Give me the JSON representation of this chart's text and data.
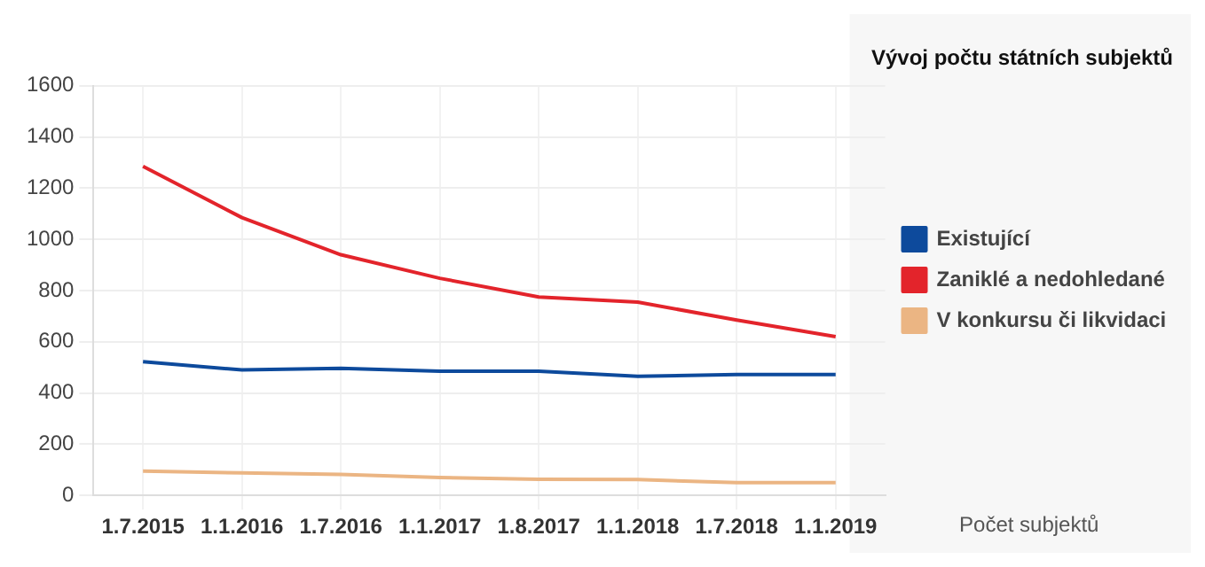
{
  "chart_data": {
    "type": "line",
    "title": "Vývoj počtu státních subjektů",
    "annotations": [
      "Počet subjektů"
    ],
    "categories": [
      "1.7.2015",
      "1.1.2016",
      "1.7.2016",
      "1.1.2017",
      "1.8.2017",
      "1.1.2018",
      "1.7.2018",
      "1.1.2019"
    ],
    "series": [
      {
        "name": "Existující",
        "color": "#0d4a9c",
        "values": [
          522,
          490,
          496,
          485,
          485,
          465,
          472,
          472
        ]
      },
      {
        "name": "Zaniklé a nedohledané",
        "color": "#e3242b",
        "values": [
          1285,
          1085,
          940,
          848,
          775,
          755,
          685,
          620
        ]
      },
      {
        "name": "V konkursu či likvidaci",
        "color": "#ebb583",
        "values": [
          95,
          88,
          82,
          70,
          63,
          62,
          50,
          50
        ]
      }
    ],
    "ylim": [
      0,
      1600
    ],
    "yticks": [
      0,
      200,
      400,
      600,
      800,
      1000,
      1200,
      1400,
      1600
    ],
    "grid": true,
    "legend": "right",
    "marker": "none",
    "line_style": "solid"
  }
}
